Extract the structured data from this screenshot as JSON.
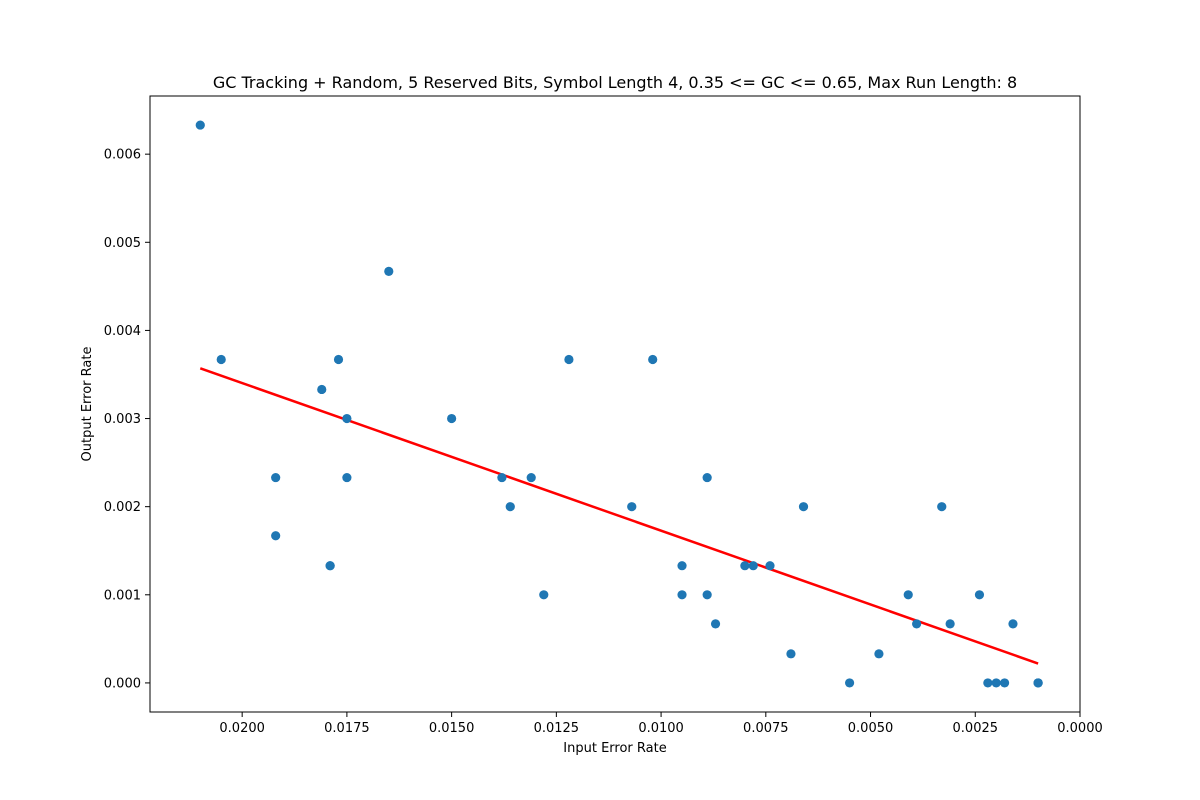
{
  "chart_data": {
    "type": "scatter",
    "title": "GC Tracking + Random, 5 Reserved Bits, Symbol Length 4, 0.35 <= GC <= 0.65, Max Run Length: 8",
    "xlabel": "Input Error Rate",
    "ylabel": "Output Error Rate",
    "xlim": [
      0.0,
      0.0222
    ],
    "x_inverted": true,
    "ylim": [
      -0.00033,
      0.00666
    ],
    "xticks": [
      0.02,
      0.0175,
      0.015,
      0.0125,
      0.01,
      0.0075,
      0.005,
      0.0025,
      0.0
    ],
    "xtick_labels": [
      "0.0200",
      "0.0175",
      "0.0150",
      "0.0125",
      "0.0100",
      "0.0075",
      "0.0050",
      "0.0025",
      "0.0000"
    ],
    "yticks": [
      0.0,
      0.001,
      0.002,
      0.003,
      0.004,
      0.005,
      0.006
    ],
    "ytick_labels": [
      "0.000",
      "0.001",
      "0.002",
      "0.003",
      "0.004",
      "0.005",
      "0.006"
    ],
    "grid": false,
    "point_color": "#1f77b4",
    "fit_color": "#ff0000",
    "points": [
      [
        0.021,
        0.00633
      ],
      [
        0.0205,
        0.00367
      ],
      [
        0.0192,
        0.00233
      ],
      [
        0.0192,
        0.00167
      ],
      [
        0.0181,
        0.00333
      ],
      [
        0.0179,
        0.00133
      ],
      [
        0.0179,
        0.00133
      ],
      [
        0.0177,
        0.00367
      ],
      [
        0.0175,
        0.003
      ],
      [
        0.0175,
        0.00233
      ],
      [
        0.0165,
        0.00467
      ],
      [
        0.015,
        0.003
      ],
      [
        0.0138,
        0.00233
      ],
      [
        0.0136,
        0.002
      ],
      [
        0.0131,
        0.00233
      ],
      [
        0.0128,
        0.001
      ],
      [
        0.0122,
        0.00367
      ],
      [
        0.0107,
        0.002
      ],
      [
        0.0102,
        0.00367
      ],
      [
        0.0095,
        0.00133
      ],
      [
        0.0095,
        0.001
      ],
      [
        0.0089,
        0.00233
      ],
      [
        0.0089,
        0.001
      ],
      [
        0.0087,
        0.00067
      ],
      [
        0.008,
        0.00133
      ],
      [
        0.0078,
        0.00133
      ],
      [
        0.0074,
        0.00133
      ],
      [
        0.0069,
        0.00033
      ],
      [
        0.0066,
        0.002
      ],
      [
        0.0055,
        0.0
      ],
      [
        0.0048,
        0.00033
      ],
      [
        0.0041,
        0.001
      ],
      [
        0.0039,
        0.00067
      ],
      [
        0.0033,
        0.002
      ],
      [
        0.0031,
        0.00067
      ],
      [
        0.0024,
        0.001
      ],
      [
        0.0022,
        0.0
      ],
      [
        0.002,
        0.0
      ],
      [
        0.0018,
        0.0
      ],
      [
        0.0016,
        0.00067
      ],
      [
        0.001,
        0.0
      ],
      [
        0.001,
        0.0
      ],
      [
        0.001,
        0.0
      ]
    ],
    "fit_line": {
      "x": [
        0.021,
        0.001
      ],
      "y": [
        0.00357,
        0.00022
      ]
    }
  }
}
